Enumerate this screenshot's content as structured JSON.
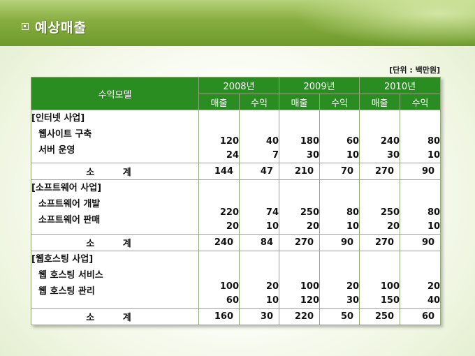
{
  "title": "예상매출",
  "unit_note": "[단위 : 백만원]",
  "table": {
    "model_header": "수익모델",
    "years": [
      "2008년",
      "2009년",
      "2010년"
    ],
    "sub_headers": [
      "매출",
      "수익",
      "매출",
      "수익",
      "매출",
      "수익"
    ],
    "groups": [
      {
        "name": "[인터넷 사업]",
        "items": [
          "웹사이트 구축",
          "서버 운영"
        ],
        "values": [
          [
            "120",
            "24"
          ],
          [
            "40",
            "7"
          ],
          [
            "180",
            "30"
          ],
          [
            "60",
            "10"
          ],
          [
            "240",
            "30"
          ],
          [
            "80",
            "10"
          ]
        ],
        "total_label": "소 계",
        "totals": [
          "144",
          "47",
          "210",
          "70",
          "270",
          "90"
        ]
      },
      {
        "name": "[소프트웨어 사업]",
        "items": [
          "소프트웨어 개발",
          "소프트웨어 판매"
        ],
        "values": [
          [
            "220",
            "20"
          ],
          [
            "74",
            "10"
          ],
          [
            "250",
            "20"
          ],
          [
            "80",
            "10"
          ],
          [
            "250",
            "20"
          ],
          [
            "80",
            "10"
          ]
        ],
        "total_label": "소 계",
        "totals": [
          "240",
          "84",
          "270",
          "90",
          "270",
          "90"
        ]
      },
      {
        "name": "[웹호스팅 사업]",
        "items": [
          "웹 호스팅 서비스",
          "웹 호스팅 관리"
        ],
        "values": [
          [
            "100",
            "60"
          ],
          [
            "20",
            "10"
          ],
          [
            "100",
            "120"
          ],
          [
            "20",
            "30"
          ],
          [
            "100",
            "150"
          ],
          [
            "20",
            "40"
          ]
        ],
        "total_label": "소 계",
        "totals": [
          "160",
          "30",
          "220",
          "50",
          "250",
          "60"
        ]
      }
    ]
  }
}
